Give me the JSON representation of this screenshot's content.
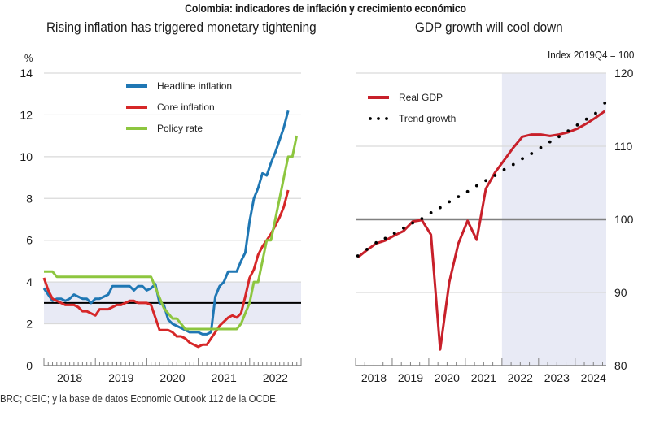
{
  "main_title": "Colombia: indicadores de inflación y crecimiento económico",
  "source_note": "BRC; CEIC; y la base de datos Economic Outlook 112 de la OCDE.",
  "chart_data": [
    {
      "type": "line",
      "title": "Rising inflation has triggered monetary tightening",
      "ylabel": "%",
      "xlabel": "",
      "ylim": [
        0,
        14
      ],
      "yticks": [
        0,
        2,
        4,
        6,
        8,
        10,
        12,
        14
      ],
      "xlim": [
        2018.0,
        2023.0
      ],
      "xtick_labels": [
        "2018",
        "2019",
        "2020",
        "2021",
        "2022"
      ],
      "grid": true,
      "legend_position": "top-center",
      "target_band": {
        "low": 2,
        "high": 4,
        "color": "#e8eaf5"
      },
      "target_line": {
        "value": 3,
        "color": "#000000"
      },
      "series": [
        {
          "name": "Headline inflation",
          "color": "#1f77b4",
          "x_start": 2018.0,
          "step": 0.0833,
          "values": [
            3.7,
            3.4,
            3.1,
            3.2,
            3.2,
            3.1,
            3.2,
            3.4,
            3.3,
            3.2,
            3.2,
            3.0,
            3.2,
            3.2,
            3.3,
            3.4,
            3.8,
            3.8,
            3.8,
            3.8,
            3.8,
            3.6,
            3.8,
            3.8,
            3.6,
            3.7,
            3.9,
            3.0,
            2.9,
            2.2,
            2.0,
            1.9,
            1.8,
            1.7,
            1.6,
            1.6,
            1.6,
            1.5,
            1.5,
            1.6,
            3.3,
            3.8,
            4.0,
            4.5,
            4.5,
            4.5,
            5.0,
            5.4,
            6.9,
            8.0,
            8.5,
            9.2,
            9.1,
            9.7,
            10.2,
            10.8,
            11.4,
            12.2
          ]
        },
        {
          "name": "Core inflation",
          "color": "#d62728",
          "x_start": 2018.0,
          "step": 0.0833,
          "values": [
            4.2,
            3.6,
            3.2,
            3.1,
            3.0,
            2.9,
            2.9,
            2.9,
            2.8,
            2.6,
            2.6,
            2.5,
            2.4,
            2.7,
            2.7,
            2.7,
            2.8,
            2.9,
            2.9,
            3.0,
            3.1,
            3.1,
            3.0,
            3.0,
            3.0,
            2.9,
            2.3,
            1.7,
            1.7,
            1.7,
            1.6,
            1.4,
            1.4,
            1.3,
            1.1,
            1.0,
            0.9,
            1.0,
            1.0,
            1.3,
            1.6,
            1.9,
            2.1,
            2.3,
            2.4,
            2.3,
            2.5,
            3.3,
            4.2,
            4.6,
            5.3,
            5.7,
            6.0,
            6.3,
            6.7,
            7.1,
            7.6,
            8.4
          ]
        },
        {
          "name": "Policy rate",
          "color": "#8dc63f",
          "x_start": 2018.0,
          "step": 0.0833,
          "values": [
            4.5,
            4.5,
            4.5,
            4.25,
            4.25,
            4.25,
            4.25,
            4.25,
            4.25,
            4.25,
            4.25,
            4.25,
            4.25,
            4.25,
            4.25,
            4.25,
            4.25,
            4.25,
            4.25,
            4.25,
            4.25,
            4.25,
            4.25,
            4.25,
            4.25,
            4.25,
            3.75,
            3.25,
            2.75,
            2.5,
            2.25,
            2.25,
            2.0,
            1.75,
            1.75,
            1.75,
            1.75,
            1.75,
            1.75,
            1.75,
            1.75,
            1.75,
            1.75,
            1.75,
            1.75,
            1.75,
            2.0,
            2.5,
            3.0,
            4.0,
            4.0,
            5.0,
            6.0,
            6.0,
            7.0,
            8.0,
            9.0,
            10.0,
            10.0,
            11.0
          ]
        }
      ]
    },
    {
      "type": "line",
      "title": "GDP growth will cool down",
      "ylabel": "Index 2019Q4 = 100",
      "xlabel": "",
      "ylim": [
        80,
        120
      ],
      "yticks": [
        80,
        90,
        100,
        110,
        120
      ],
      "y_axis_side": "right",
      "xlim": [
        2018.0,
        2024.85
      ],
      "xtick_labels": [
        "2018",
        "2019",
        "2020",
        "2021",
        "2022",
        "2023",
        "2024"
      ],
      "grid": true,
      "legend_position": "top-left",
      "projection_shading": {
        "from": "2022Q1",
        "to": "2024Q4",
        "color": "#e8eaf5"
      },
      "reference_line": {
        "value": 100,
        "color": "#808080"
      },
      "series": [
        {
          "name": "Real GDP",
          "color": "#c8202a",
          "style": "solid",
          "quarters": [
            "2018Q1",
            "2018Q2",
            "2018Q3",
            "2018Q4",
            "2019Q1",
            "2019Q2",
            "2019Q3",
            "2019Q4",
            "2020Q1",
            "2020Q2",
            "2020Q3",
            "2020Q4",
            "2021Q1",
            "2021Q2",
            "2021Q3",
            "2021Q4",
            "2022Q1",
            "2022Q2",
            "2022Q3",
            "2022Q4",
            "2023Q1",
            "2023Q2",
            "2023Q3",
            "2023Q4",
            "2024Q1",
            "2024Q2",
            "2024Q3",
            "2024Q4"
          ],
          "values": [
            94.8,
            95.8,
            96.7,
            97.1,
            97.8,
            98.4,
            99.7,
            99.9,
            97.9,
            82.2,
            91.4,
            96.7,
            99.8,
            97.2,
            104.2,
            106.4,
            108.1,
            109.8,
            111.3,
            111.6,
            111.6,
            111.4,
            111.6,
            111.9,
            112.4,
            113.1,
            113.9,
            114.8
          ]
        },
        {
          "name": "Trend growth",
          "color": "#000000",
          "style": "dotted",
          "quarters": [
            "2018Q1",
            "2018Q2",
            "2018Q3",
            "2018Q4",
            "2019Q1",
            "2019Q2",
            "2019Q3",
            "2019Q4",
            "2020Q1",
            "2020Q2",
            "2020Q3",
            "2020Q4",
            "2021Q1",
            "2021Q2",
            "2021Q3",
            "2021Q4",
            "2022Q1",
            "2022Q2",
            "2022Q3",
            "2022Q4",
            "2023Q1",
            "2023Q2",
            "2023Q3",
            "2023Q4",
            "2024Q1",
            "2024Q2",
            "2024Q3",
            "2024Q4"
          ],
          "values": [
            95.0,
            95.9,
            96.8,
            97.4,
            98.1,
            98.8,
            99.5,
            100.1,
            100.9,
            101.6,
            102.4,
            103.1,
            103.8,
            104.6,
            105.3,
            106.0,
            106.8,
            107.5,
            108.3,
            109.0,
            109.8,
            110.6,
            111.3,
            112.1,
            112.9,
            113.7,
            114.5,
            115.9
          ]
        }
      ]
    }
  ]
}
